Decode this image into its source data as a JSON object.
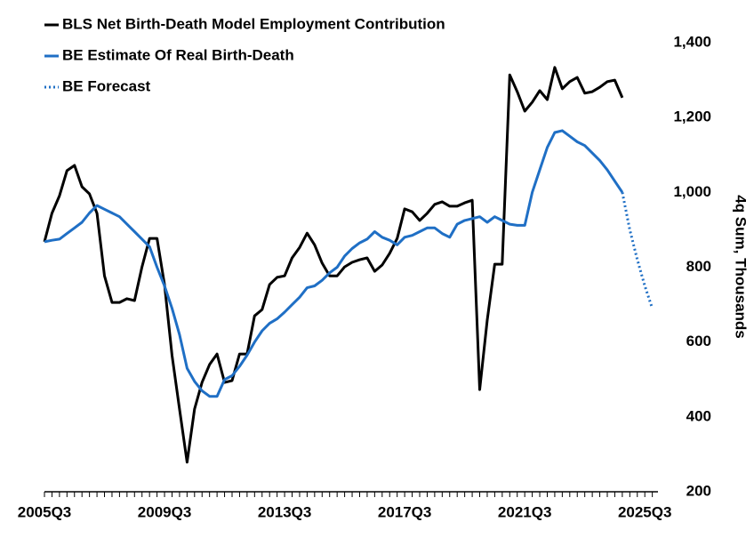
{
  "chart_data": {
    "type": "line",
    "y_label": "4q Sum, Thousands",
    "categories": [
      "2005Q3",
      null,
      null,
      null,
      null,
      null,
      null,
      null,
      null,
      null,
      null,
      null,
      null,
      null,
      null,
      null,
      "2009Q3",
      null,
      null,
      null,
      null,
      null,
      null,
      null,
      null,
      null,
      null,
      null,
      null,
      null,
      null,
      null,
      "2013Q3",
      null,
      null,
      null,
      null,
      null,
      null,
      null,
      null,
      null,
      null,
      null,
      null,
      null,
      null,
      null,
      "2017Q3",
      null,
      null,
      null,
      null,
      null,
      null,
      null,
      null,
      null,
      null,
      null,
      null,
      null,
      null,
      null,
      "2021Q3",
      null,
      null,
      null,
      null,
      null,
      null,
      null,
      null,
      null,
      null,
      null,
      null,
      null,
      null,
      null,
      "2025Q3",
      null
    ],
    "series": [
      {
        "name": "BLS Net Birth-Death Model Employment Contribution",
        "color": "#000000",
        "style": "solid",
        "values": [
          868,
          944,
          991,
          1058,
          1072,
          1015,
          996,
          944,
          777,
          706,
          706,
          716,
          711,
          801,
          877,
          877,
          754,
          564,
          421,
          279,
          421,
          492,
          540,
          568,
          492,
          497,
          568,
          568,
          670,
          687,
          754,
          773,
          777,
          825,
          853,
          891,
          860,
          811,
          777,
          777,
          801,
          813,
          820,
          825,
          789,
          806,
          837,
          877,
          956,
          948,
          925,
          944,
          968,
          975,
          963,
          963,
          972,
          979,
          473,
          659,
          808,
          808,
          1314,
          1269,
          1217,
          1241,
          1272,
          1248,
          1334,
          1277,
          1296,
          1307,
          1265,
          1269,
          1281,
          1296,
          1300,
          1253,
          null,
          null,
          null,
          null
        ]
      },
      {
        "name": "BE Estimate Of Real Birth-Death",
        "color": "#1f6fc5",
        "style": "solid",
        "values": [
          868,
          872,
          875,
          890,
          905,
          920,
          945,
          965,
          955,
          945,
          935,
          915,
          895,
          875,
          855,
          800,
          750,
          690,
          620,
          530,
          495,
          470,
          455,
          455,
          500,
          510,
          535,
          565,
          600,
          630,
          650,
          662,
          680,
          700,
          720,
          745,
          750,
          765,
          785,
          800,
          830,
          850,
          865,
          875,
          895,
          880,
          872,
          860,
          880,
          885,
          895,
          905,
          905,
          890,
          880,
          915,
          925,
          930,
          935,
          920,
          935,
          925,
          915,
          912,
          912,
          1000,
          1060,
          1120,
          1160,
          1165,
          1150,
          1135,
          1125,
          1105,
          1085,
          1060,
          1030,
          1000,
          null,
          null,
          null,
          null
        ]
      },
      {
        "name": "BE Forecast",
        "color": "#1f6fc5",
        "style": "dotted",
        "values": [
          null,
          null,
          null,
          null,
          null,
          null,
          null,
          null,
          null,
          null,
          null,
          null,
          null,
          null,
          null,
          null,
          null,
          null,
          null,
          null,
          null,
          null,
          null,
          null,
          null,
          null,
          null,
          null,
          null,
          null,
          null,
          null,
          null,
          null,
          null,
          null,
          null,
          null,
          null,
          null,
          null,
          null,
          null,
          null,
          null,
          null,
          null,
          null,
          null,
          null,
          null,
          null,
          null,
          null,
          null,
          null,
          null,
          null,
          null,
          null,
          null,
          null,
          null,
          null,
          null,
          null,
          null,
          null,
          null,
          null,
          null,
          null,
          null,
          null,
          null,
          null,
          null,
          1000,
          900,
          820,
          750,
          690
        ]
      }
    ],
    "ylim": [
      200,
      1400
    ],
    "yticks": [
      200,
      400,
      600,
      800,
      {
        "value": 1000,
        "label": "1,000"
      },
      {
        "value": 1200,
        "label": "1,200"
      },
      {
        "value": 1400,
        "label": "1,400"
      }
    ],
    "grid": false
  }
}
